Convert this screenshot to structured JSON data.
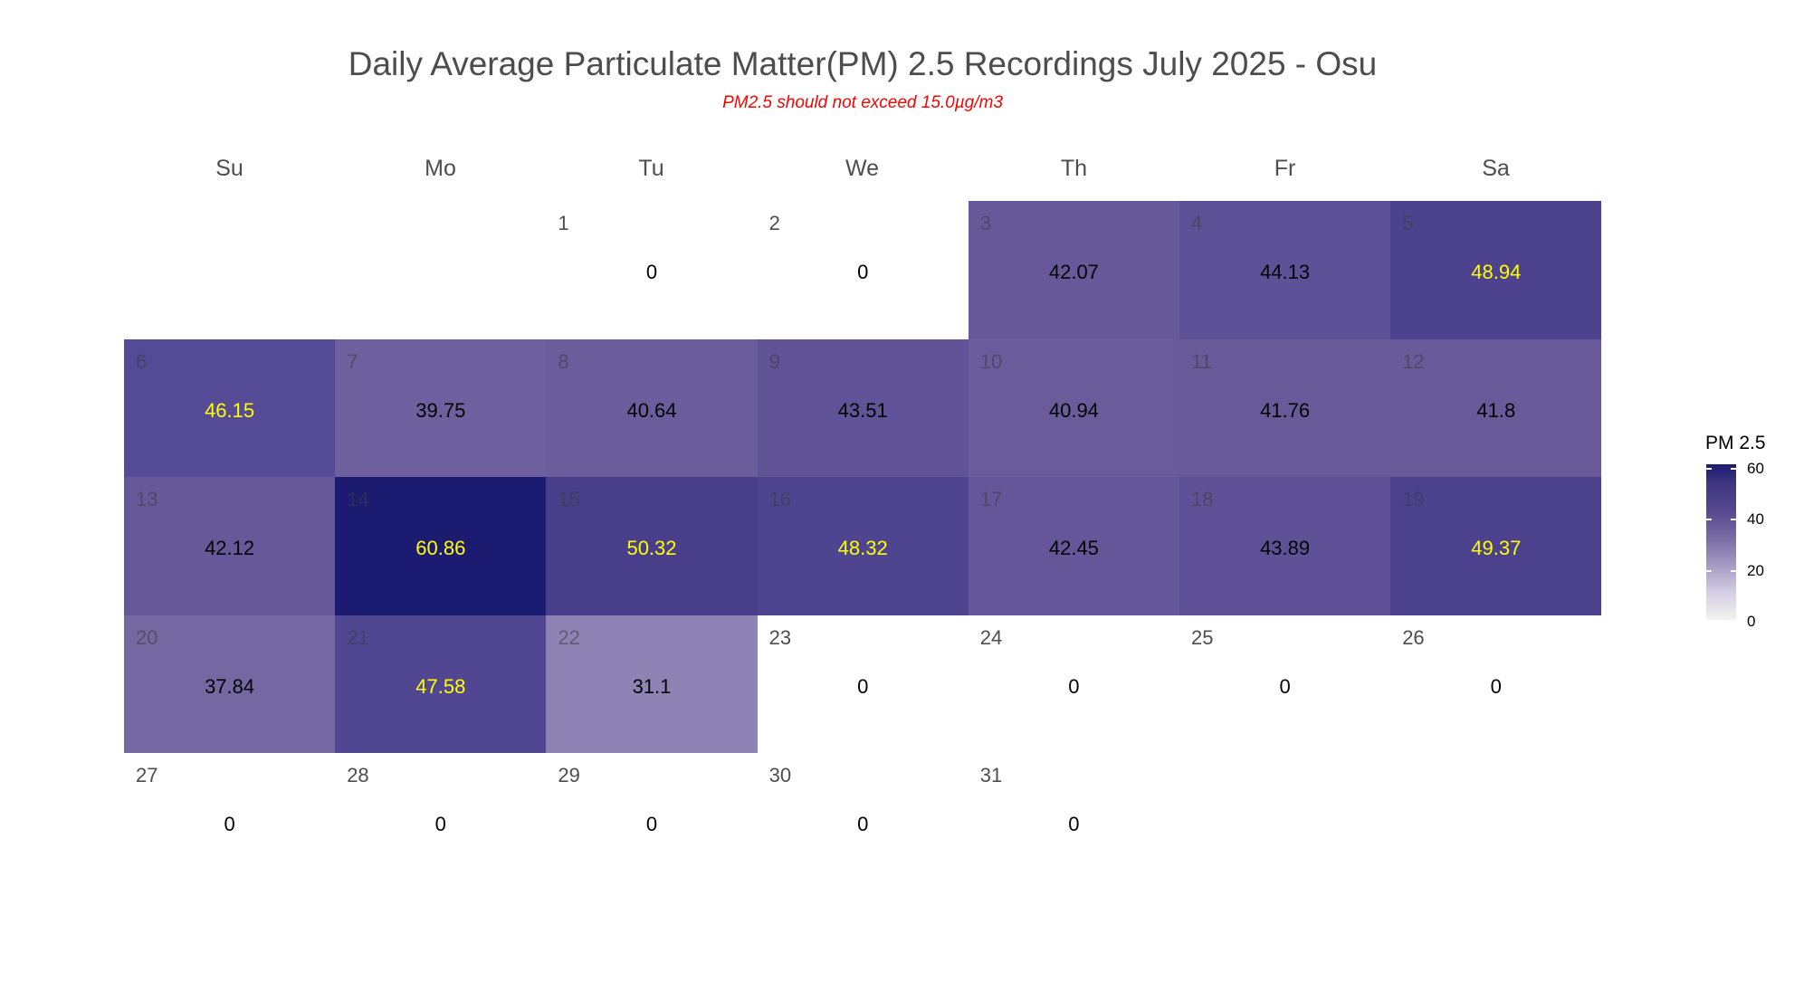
{
  "chart_data": {
    "type": "heatmap",
    "title": "Daily Average Particulate Matter(PM) 2.5 Recordings July 2025 -  Osu",
    "subtitle": "PM2.5 should not exceed 15.0µg/m3",
    "weekdays": [
      "Su",
      "Mo",
      "Tu",
      "We",
      "Th",
      "Fr",
      "Sa"
    ],
    "month": "July 2025",
    "first_weekday_index": 2,
    "days": [
      {
        "day": "1",
        "value": "0"
      },
      {
        "day": "2",
        "value": "0"
      },
      {
        "day": "3",
        "value": "42.07"
      },
      {
        "day": "4",
        "value": "44.13"
      },
      {
        "day": "5",
        "value": "48.94"
      },
      {
        "day": "6",
        "value": "46.15"
      },
      {
        "day": "7",
        "value": "39.75"
      },
      {
        "day": "8",
        "value": "40.64"
      },
      {
        "day": "9",
        "value": "43.51"
      },
      {
        "day": "10",
        "value": "40.94"
      },
      {
        "day": "11",
        "value": "41.76"
      },
      {
        "day": "12",
        "value": "41.8"
      },
      {
        "day": "13",
        "value": "42.12"
      },
      {
        "day": "14",
        "value": "60.86"
      },
      {
        "day": "15",
        "value": "50.32"
      },
      {
        "day": "16",
        "value": "48.32"
      },
      {
        "day": "17",
        "value": "42.45"
      },
      {
        "day": "18",
        "value": "43.89"
      },
      {
        "day": "19",
        "value": "49.37"
      },
      {
        "day": "20",
        "value": "37.84"
      },
      {
        "day": "21",
        "value": "47.58"
      },
      {
        "day": "22",
        "value": "31.1"
      },
      {
        "day": "23",
        "value": "0"
      },
      {
        "day": "24",
        "value": "0"
      },
      {
        "day": "25",
        "value": "0"
      },
      {
        "day": "26",
        "value": "0"
      },
      {
        "day": "27",
        "value": "0"
      },
      {
        "day": "28",
        "value": "0"
      },
      {
        "day": "29",
        "value": "0"
      },
      {
        "day": "30",
        "value": "0"
      },
      {
        "day": "31",
        "value": "0"
      }
    ],
    "legend": {
      "title": "PM 2.5",
      "ticks": [
        "0",
        "20",
        "40",
        "60"
      ],
      "range": [
        0,
        61
      ],
      "position": "right"
    },
    "colors": {
      "low": "#f3f3ef",
      "high": "#1b1b72",
      "label_dark": "#000000",
      "label_light": "#ffff00",
      "light_label_threshold": 45
    }
  }
}
